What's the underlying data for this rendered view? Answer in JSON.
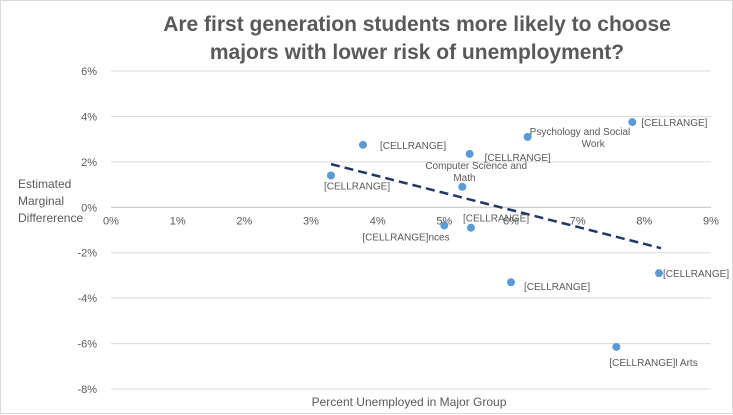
{
  "chart_data": {
    "type": "scatter",
    "title_lines": [
      "Are first generation students more likely to choose",
      "majors with lower risk of unemployment?"
    ],
    "xlabel": "Percent Unemployed in Major Group",
    "ylabel_lines": [
      "Estimated",
      "Marginal",
      "Differerence"
    ],
    "xlim": [
      0,
      9
    ],
    "ylim": [
      -8,
      6
    ],
    "x_ticks": [
      "0%",
      "1%",
      "2%",
      "3%",
      "4%",
      "5%",
      "6%",
      "7%",
      "8%",
      "9%"
    ],
    "y_ticks": [
      "6%",
      "4%",
      "2%",
      "0%",
      "-2%",
      "-4%",
      "-6%",
      "-8%"
    ],
    "grid": "horizontal",
    "points": [
      {
        "x": 3.3,
        "y": 1.4,
        "label": [
          "[CELLRANGE]"
        ]
      },
      {
        "x": 3.78,
        "y": 2.75,
        "label": [
          "[CELLRANGE]"
        ]
      },
      {
        "x": 5.0,
        "y": -0.8,
        "label": [
          "[CELLRANGE]nces"
        ]
      },
      {
        "x": 5.27,
        "y": 0.9,
        "label": [
          "Computer Science and",
          "Math"
        ]
      },
      {
        "x": 5.38,
        "y": 2.35,
        "label": [
          "[CELLRANGE]"
        ]
      },
      {
        "x": 5.4,
        "y": -0.9,
        "label": [
          "[CELLRANGE]"
        ]
      },
      {
        "x": 6.0,
        "y": -3.3,
        "label": [
          "[CELLRANGE]"
        ]
      },
      {
        "x": 6.25,
        "y": 3.1,
        "label": [
          "Psychology and Social",
          "Work"
        ]
      },
      {
        "x": 7.58,
        "y": -6.15,
        "label": [
          "[CELLRANGE]l Arts"
        ]
      },
      {
        "x": 7.82,
        "y": 3.75,
        "label": [
          "[CELLRANGE]"
        ]
      },
      {
        "x": 8.22,
        "y": -2.9,
        "label": [
          "[CELLRANGE]"
        ]
      }
    ],
    "trendline": {
      "x": [
        3.3,
        8.25
      ],
      "y": [
        1.9,
        -1.8
      ],
      "style": "dashed",
      "color": "#1f3864"
    },
    "point_color": "#5b9bd5"
  }
}
